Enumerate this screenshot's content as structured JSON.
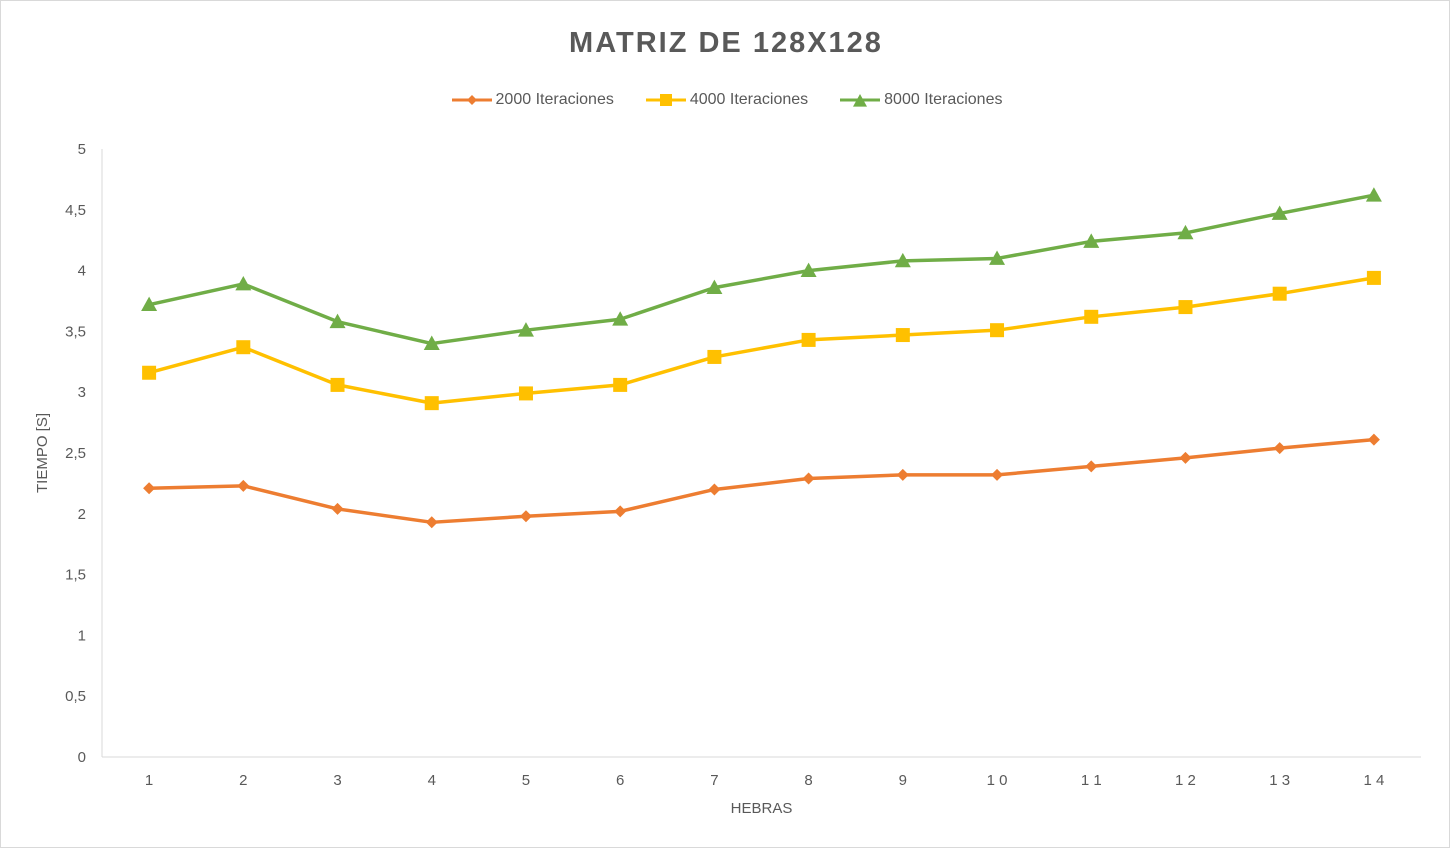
{
  "chart_data": {
    "type": "line",
    "title": "MATRIZ DE 128X128",
    "xlabel": "HEBRAS",
    "ylabel": "TIEMPO [S]",
    "categories": [
      "1",
      "2",
      "3",
      "4",
      "5",
      "6",
      "7",
      "8",
      "9",
      "1 0",
      "1 1",
      "1 2",
      "1 3",
      "1 4"
    ],
    "ylim": [
      0,
      5
    ],
    "yticks": [
      0,
      0.5,
      1,
      1.5,
      2,
      2.5,
      3,
      3.5,
      4,
      4.5,
      5
    ],
    "ytick_labels": [
      "0",
      "0,5",
      "1",
      "1,5",
      "2",
      "2,5",
      "3",
      "3,5",
      "4",
      "4,5",
      "5"
    ],
    "grid": false,
    "legend_position": "top",
    "series": [
      {
        "name": "2000 Iteraciones",
        "color": "#ed7d31",
        "marker": "diamond",
        "values": [
          2.21,
          2.23,
          2.04,
          1.93,
          1.98,
          2.02,
          2.2,
          2.29,
          2.32,
          2.32,
          2.39,
          2.46,
          2.54,
          2.61
        ]
      },
      {
        "name": "4000 Iteraciones",
        "color": "#ffc000",
        "marker": "square",
        "values": [
          3.16,
          3.37,
          3.06,
          2.91,
          2.99,
          3.06,
          3.29,
          3.43,
          3.47,
          3.51,
          3.62,
          3.7,
          3.81,
          3.94
        ]
      },
      {
        "name": "8000 Iteraciones",
        "color": "#70ad47",
        "marker": "triangle",
        "values": [
          3.72,
          3.89,
          3.58,
          3.4,
          3.51,
          3.6,
          3.86,
          4.0,
          4.08,
          4.1,
          4.24,
          4.31,
          4.47,
          4.62
        ]
      }
    ]
  }
}
